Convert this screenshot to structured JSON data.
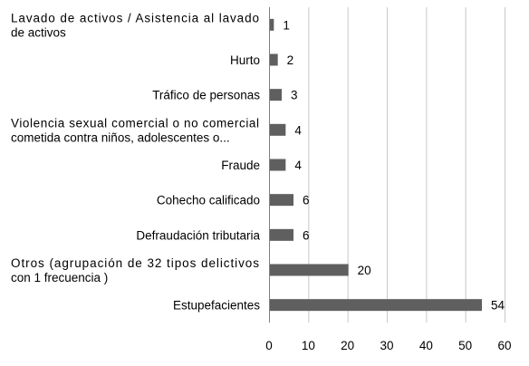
{
  "chart_data": {
    "type": "bar",
    "orientation": "horizontal",
    "categories": [
      "Lavado de activos / Asistencia al lavado de activos",
      "Hurto",
      "Tráfico de personas",
      "Violencia sexual comercial o no comercial cometida contra niños, adolescentes o...",
      "Fraude",
      "Cohecho calificado",
      "Defraudación tributaria",
      "Otros (agrupación de 32 tipos delictivos con 1 frecuencia )",
      "Estupefacientes"
    ],
    "category_lines": [
      [
        "Lavado de activos / Asistencia al lavado",
        "de activos"
      ],
      [
        "Hurto"
      ],
      [
        "Tráfico de personas"
      ],
      [
        "Violencia sexual comercial o no comercial",
        "cometida contra niños, adolescentes o..."
      ],
      [
        "Fraude"
      ],
      [
        "Cohecho calificado"
      ],
      [
        "Defraudación tributaria"
      ],
      [
        "Otros (agrupación de 32 tipos delictivos",
        "con 1 frecuencia )"
      ],
      [
        "Estupefacientes"
      ]
    ],
    "values": [
      1,
      2,
      3,
      4,
      4,
      6,
      6,
      20,
      54
    ],
    "data_labels": true,
    "xlim": [
      0,
      60
    ],
    "xticks": [
      0,
      10,
      20,
      30,
      40,
      50,
      60
    ],
    "grid": true,
    "bar_color": "#5f5f5f",
    "title": "",
    "xlabel": "",
    "ylabel": ""
  }
}
